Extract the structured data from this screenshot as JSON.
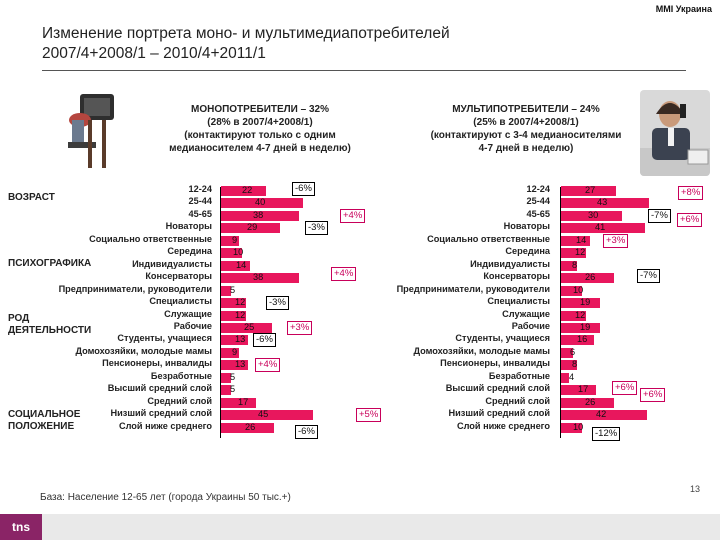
{
  "brand": "MMI Украина",
  "title_line1": "Изменение портрета моно- и мультимедиапотребителей",
  "title_line2": "2007/4+2008/1 – 2010/4+2011/1",
  "mono": {
    "line1": "МОНОПОТРЕБИТЕЛИ – 32%",
    "line2": "(28% в 2007/4+2008/1)",
    "line3": "(контактируют только с одним",
    "line4": "медианосителем 4-7 дней в неделю)"
  },
  "multi": {
    "line1": "МУЛЬТИПОТРЕБИТЕЛИ – 24%",
    "line2": "(25% в 2007/4+2008/1)",
    "line3": "(контактируют с 3-4  медианосителями",
    "line4": "4-7 дней в неделю)"
  },
  "groups": {
    "age": "ВОЗРАСТ",
    "psycho": "ПСИХОГРАФИКА",
    "occ1": "РОД",
    "occ2": "ДЕЯТЕЛЬНОСТИ",
    "soc1": "СОЦИАЛЬНОЕ",
    "soc2": "ПОЛОЖЕНИЕ"
  },
  "footnote": "База: Население 12-65 лет (города Украины 50 тыс.+)",
  "page_number": "13",
  "logo": "tns",
  "colors": {
    "bar": "#e8175d",
    "accent_change": "#c8005a"
  },
  "chart_data": [
    {
      "type": "bar",
      "orientation": "horizontal",
      "title": "МОНОПОТРЕБИТЕЛИ – 32%",
      "categories": [
        "12-24",
        "25-44",
        "45-65",
        "Новаторы",
        "Социально ответственные",
        "Середина",
        "Индивидуалисты",
        "Консерваторы",
        "Предприниматели, руководители",
        "Специалисты",
        "Служащие",
        "Рабочие",
        "Студенты, учащиеся",
        "Домохозяйки, молодые мамы",
        "Пенсионеры, инвалиды",
        "Безработные",
        "Высший средний слой",
        "Средний слой",
        "Низший средний слой",
        "Слой ниже среднего"
      ],
      "values": [
        22,
        40,
        38,
        29,
        9,
        10,
        14,
        38,
        5,
        12,
        12,
        25,
        13,
        9,
        13,
        5,
        5,
        17,
        45,
        26
      ],
      "unit": "%",
      "xlim": [
        0,
        70
      ],
      "changes": [
        {
          "category": "12-24",
          "label": "-6%"
        },
        {
          "category": "45-65",
          "label": "+4%"
        },
        {
          "category": "Новаторы",
          "label": "-3%"
        },
        {
          "category": "Консерваторы",
          "label": "+4%"
        },
        {
          "category": "Специалисты",
          "label": "-3%"
        },
        {
          "category": "Рабочие",
          "label": "+3%"
        },
        {
          "category": "Студенты, учащиеся",
          "label": "-6%"
        },
        {
          "category": "Пенсионеры, инвалиды",
          "label": "+4%"
        },
        {
          "category": "Низший средний слой",
          "label": "+5%"
        },
        {
          "category": "Слой ниже среднего",
          "label": "-6%"
        }
      ]
    },
    {
      "type": "bar",
      "orientation": "horizontal",
      "title": "МУЛЬТИПОТРЕБИТЕЛИ – 24%",
      "categories": [
        "12-24",
        "25-44",
        "45-65",
        "Новаторы",
        "Социально ответственные",
        "Середина",
        "Индивидуалисты",
        "Консерваторы",
        "Предприниматели, руководители",
        "Специалисты",
        "Служащие",
        "Рабочие",
        "Студенты, учащиеся",
        "Домохозяйки, молодые мамы",
        "Пенсионеры, инвалиды",
        "Безработные",
        "Высший средний слой",
        "Средний слой",
        "Низший средний слой",
        "Слой ниже среднего"
      ],
      "values": [
        27,
        43,
        30,
        41,
        14,
        12,
        8,
        26,
        10,
        19,
        12,
        19,
        16,
        6,
        8,
        4,
        17,
        26,
        42,
        10
      ],
      "unit": "%",
      "xlim": [
        0,
        70
      ],
      "changes": [
        {
          "category": "12-24",
          "label": "+8%"
        },
        {
          "category": "45-65",
          "label": "-7%"
        },
        {
          "category": "Новаторы",
          "label": "+6%"
        },
        {
          "category": "Социально ответственные",
          "label": "+3%"
        },
        {
          "category": "Консерваторы",
          "label": "-7%"
        },
        {
          "category": "Высший средний слой",
          "label": "+6%"
        },
        {
          "category": "Средний слой",
          "label": "+6%"
        },
        {
          "category": "Слой ниже среднего",
          "label": "-12%"
        }
      ]
    }
  ]
}
